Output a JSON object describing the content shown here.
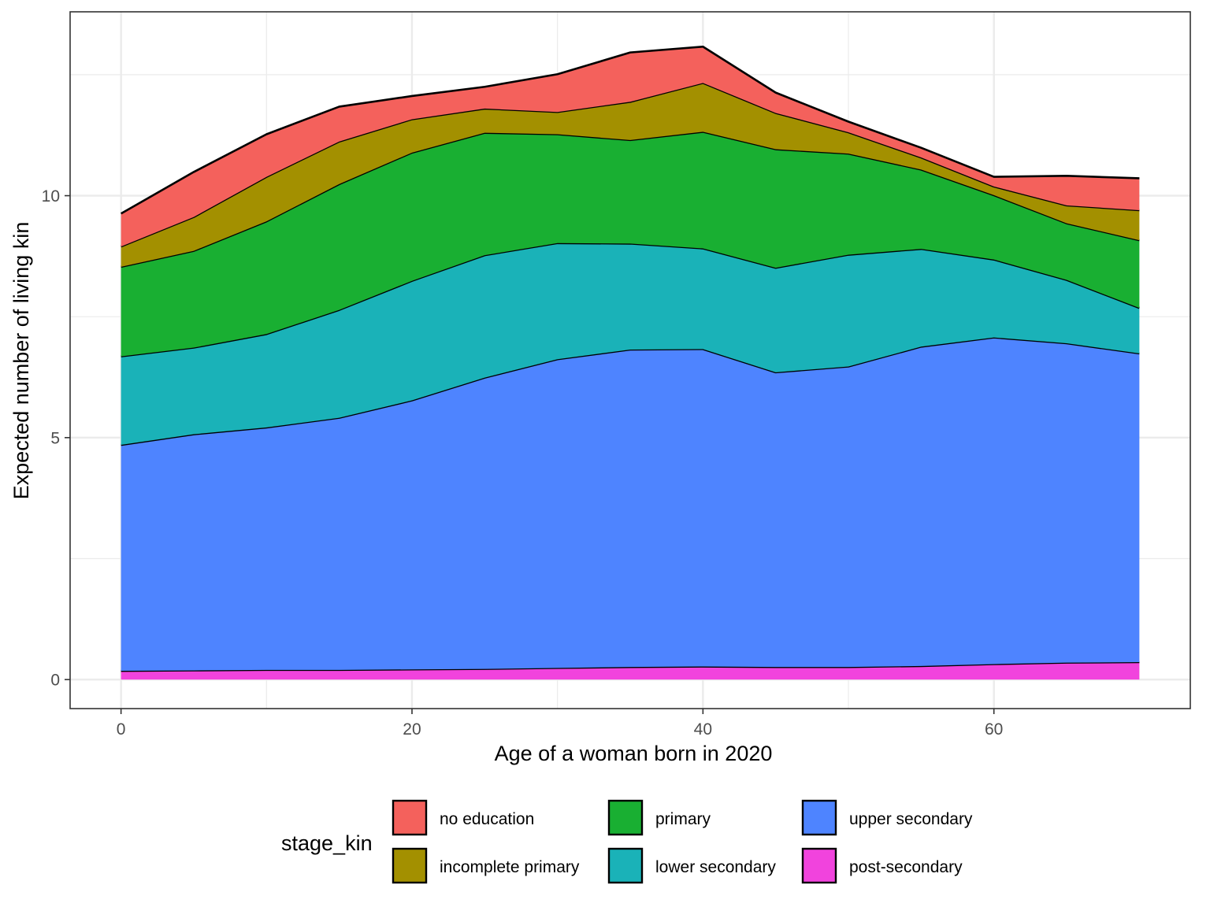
{
  "chart_data": {
    "type": "area",
    "stacked": true,
    "title": "",
    "xlabel": "Age of a woman born in 2020",
    "ylabel": "Expected number of living kin",
    "xlim": [
      -3.5,
      73.5
    ],
    "ylim": [
      -0.6,
      13.8
    ],
    "x_ticks": [
      0,
      20,
      40,
      60
    ],
    "x_tick_labels": [
      "0",
      "20",
      "40",
      "60"
    ],
    "y_ticks": [
      0,
      5,
      10
    ],
    "y_tick_labels": [
      "0",
      "5",
      "10"
    ],
    "grid": true,
    "legend": {
      "title": "stage_kin",
      "position": "bottom"
    },
    "x": [
      0,
      5,
      10,
      15,
      20,
      25,
      30,
      35,
      40,
      45,
      50,
      55,
      60,
      65,
      70
    ],
    "series": [
      {
        "name": "post-secondary",
        "color": "#F143DD",
        "values": [
          0.18,
          0.19,
          0.2,
          0.2,
          0.21,
          0.22,
          0.24,
          0.26,
          0.27,
          0.26,
          0.26,
          0.28,
          0.32,
          0.35,
          0.36
        ]
      },
      {
        "name": "upper secondary",
        "color": "#4E84FF",
        "values": [
          4.67,
          4.88,
          5.01,
          5.21,
          5.56,
          6.02,
          6.38,
          6.56,
          6.56,
          6.09,
          6.21,
          6.6,
          6.75,
          6.6,
          6.38
        ]
      },
      {
        "name": "lower secondary",
        "color": "#1AB2B8",
        "values": [
          1.83,
          1.79,
          1.93,
          2.23,
          2.47,
          2.53,
          2.4,
          2.19,
          2.08,
          2.16,
          2.31,
          2.02,
          1.61,
          1.31,
          0.94
        ]
      },
      {
        "name": "primary",
        "color": "#19AF32",
        "values": [
          1.85,
          2.0,
          2.33,
          2.6,
          2.65,
          2.53,
          2.25,
          2.14,
          2.41,
          2.45,
          2.09,
          1.64,
          1.33,
          1.17,
          1.4
        ]
      },
      {
        "name": "incomplete primary",
        "color": "#A39000",
        "values": [
          0.42,
          0.7,
          0.92,
          0.88,
          0.69,
          0.5,
          0.46,
          0.79,
          1.01,
          0.75,
          0.44,
          0.25,
          0.18,
          0.37,
          0.62
        ]
      },
      {
        "name": "no education",
        "color": "#F4615C",
        "values": [
          0.68,
          0.93,
          0.88,
          0.72,
          0.48,
          0.45,
          0.78,
          1.02,
          0.75,
          0.42,
          0.22,
          0.2,
          0.2,
          0.61,
          0.66
        ]
      }
    ]
  }
}
